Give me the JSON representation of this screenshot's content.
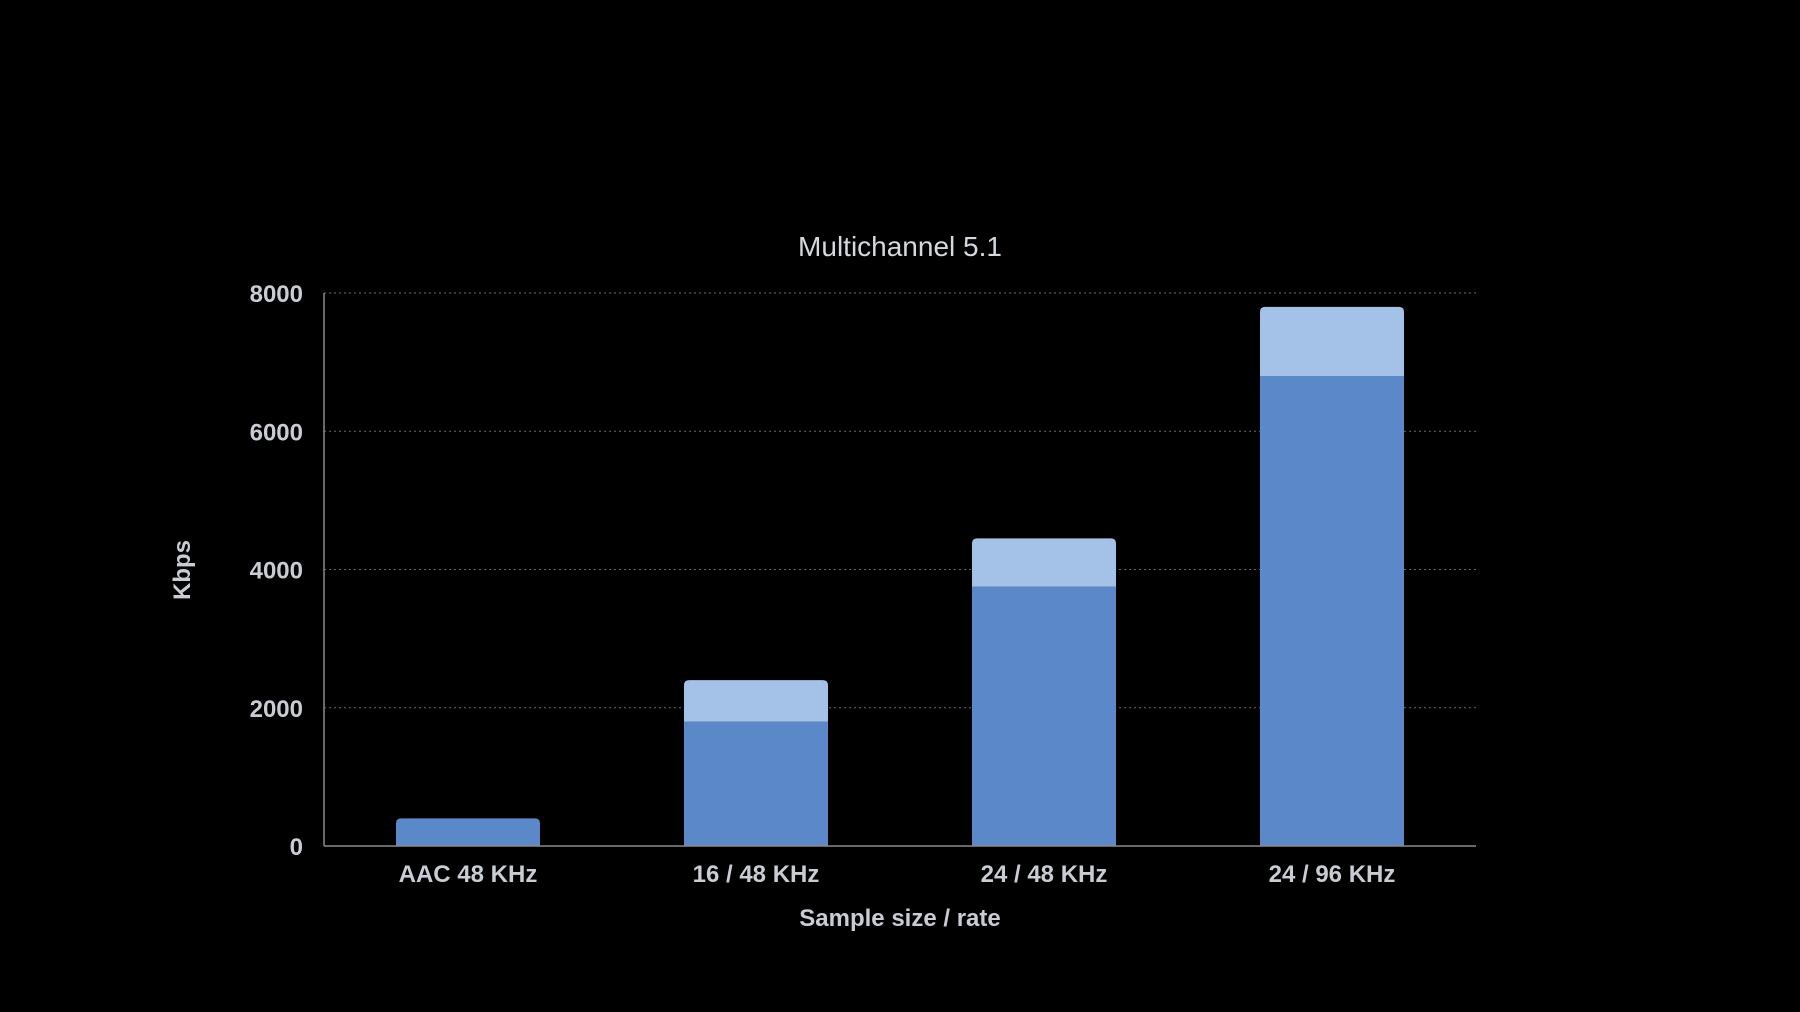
{
  "chart_data": {
    "type": "bar",
    "stacked": true,
    "title": "Multichannel 5.1",
    "xlabel": "Sample size / rate",
    "ylabel": "Kbps",
    "ylim": [
      0,
      8000
    ],
    "yticks": [
      "0",
      "2000",
      "4000",
      "6000",
      "8000"
    ],
    "grid": true,
    "categories": [
      "AAC 48 KHz",
      "16 / 48 KHz",
      "24 / 48 KHz",
      "24 / 96 KHz"
    ],
    "series": [
      {
        "values": [
          400,
          1800,
          3750,
          6800
        ],
        "color": "#5a88c8"
      },
      {
        "values": [
          0,
          600,
          700,
          1000
        ],
        "color": "#a4c1e8"
      }
    ]
  }
}
